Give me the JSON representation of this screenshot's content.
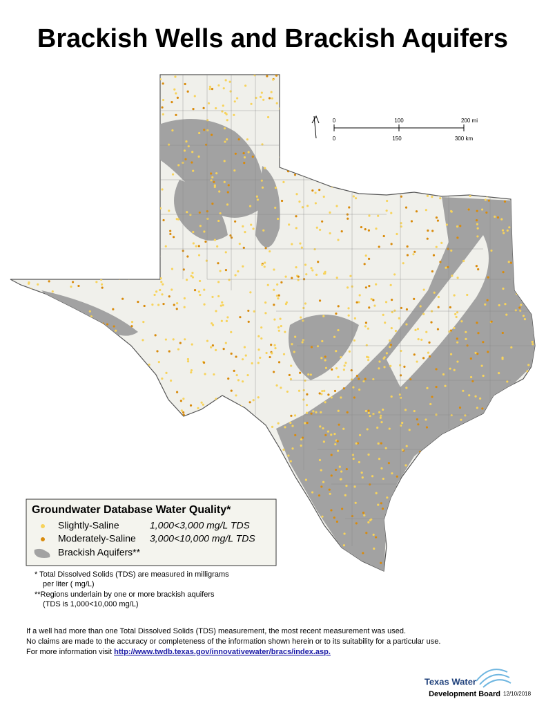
{
  "title": "Brackish Wells and Brackish Aquifers",
  "scale_bar": {
    "miles": [
      "0",
      "100",
      "200 mi"
    ],
    "km": [
      "0",
      "150",
      "300 km"
    ]
  },
  "legend": {
    "title": "Groundwater Database Water Quality*",
    "items": [
      {
        "label": "Slightly-Saline",
        "range": "1,000<3,000 mg/L TDS"
      },
      {
        "label": "Moderately-Saline",
        "range": "3,000<10,000 mg/L TDS"
      },
      {
        "label": "Brackish Aquifers**"
      }
    ]
  },
  "footnotes": [
    "* Total Dissolved Solids (TDS) are measured in milligrams",
    "per liter ( mg/L)",
    "**Regions underlain by one or more brackish aquifers",
    "(TDS is 1,000<10,000 mg/L)"
  ],
  "notes": [
    "If a well had more than one Total Dissolved Solids (TDS) measurement, the most recent measurement was used.",
    "No claims are made to the accuracy or completeness of the information shown herein or to its suitability for a particular use.",
    "For more information visit "
  ],
  "link": "http://www.twdb.texas.gov/innovativewater/bracs/index.asp.",
  "logo": {
    "line1": "Texas Water",
    "line2": "Development Board"
  },
  "date": "12/10/2018"
}
